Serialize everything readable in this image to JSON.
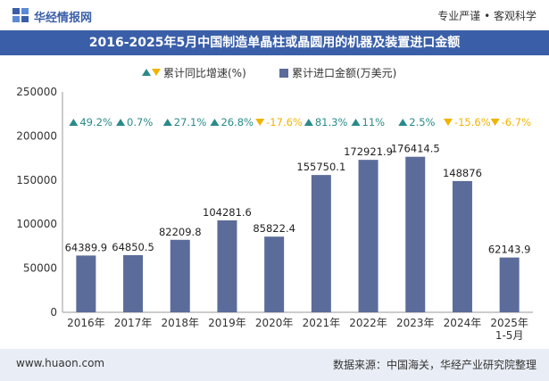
{
  "header": {
    "brand": "华经情报网",
    "slogan": "专业严谨 • 客观科学"
  },
  "footer": {
    "website": "www.huaon.com",
    "source": "数据来源：中国海关，华经产业研究院整理"
  },
  "colors": {
    "bar": "#5b6c9a",
    "title_bg": "#3a5fa8",
    "up": "#2a8a8a",
    "down": "#f0b400",
    "footer_bg": "#e9edf5"
  },
  "chart_data": {
    "type": "bar",
    "title": "2016-2025年5月中国制造单晶柱或晶圆用的机器及装置进口金额",
    "legend": {
      "growth_label": "累计同比增速(%)",
      "value_label": "累计进口金额(万美元)",
      "position": "top"
    },
    "categories": [
      "2016年",
      "2017年",
      "2018年",
      "2019年",
      "2020年",
      "2021年",
      "2022年",
      "2023年",
      "2024年",
      "2025年\n1-5月"
    ],
    "series": [
      {
        "name": "累计进口金额(万美元)",
        "values": [
          64389.9,
          64850.5,
          82209.8,
          104281.6,
          85822.4,
          155750.1,
          172921.9,
          176414.5,
          148876,
          62143.9
        ],
        "labels": [
          "64389.9",
          "64850.5",
          "82209.8",
          "104281.6",
          "85822.4",
          "155750.1",
          "172921.9",
          "176414.5",
          "148876",
          "62143.9"
        ]
      },
      {
        "name": "累计同比增速(%)",
        "values": [
          49.2,
          0.7,
          27.1,
          26.8,
          -17.6,
          81.3,
          11,
          2.5,
          -15.6,
          -6.7
        ],
        "labels": [
          "49.2%",
          "0.7%",
          "27.1%",
          "26.8%",
          "-17.6%",
          "81.3%",
          "11%",
          "2.5%",
          "-15.6%",
          "-6.7%"
        ]
      }
    ],
    "yticks": [
      "0",
      "50000",
      "100000",
      "150000",
      "200000",
      "250000"
    ],
    "ylim": [
      0,
      250000
    ],
    "grid": false
  }
}
